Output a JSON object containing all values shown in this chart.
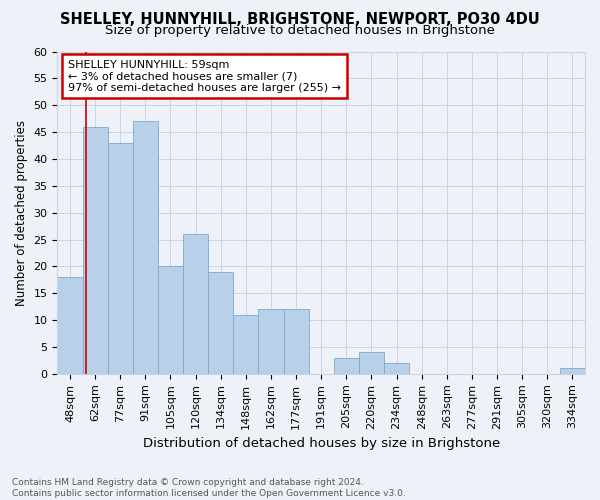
{
  "title": "SHELLEY, HUNNYHILL, BRIGHSTONE, NEWPORT, PO30 4DU",
  "subtitle": "Size of property relative to detached houses in Brighstone",
  "xlabel": "Distribution of detached houses by size in Brighstone",
  "ylabel": "Number of detached properties",
  "categories": [
    "48sqm",
    "62sqm",
    "77sqm",
    "91sqm",
    "105sqm",
    "120sqm",
    "134sqm",
    "148sqm",
    "162sqm",
    "177sqm",
    "191sqm",
    "205sqm",
    "220sqm",
    "234sqm",
    "248sqm",
    "263sqm",
    "277sqm",
    "291sqm",
    "305sqm",
    "320sqm",
    "334sqm"
  ],
  "values": [
    18,
    46,
    43,
    47,
    20,
    26,
    19,
    11,
    12,
    12,
    0,
    3,
    4,
    2,
    0,
    0,
    0,
    0,
    0,
    0,
    1
  ],
  "bar_color": "#b8d0e8",
  "bar_edgecolor": "#7aaacf",
  "background_color": "#eef2f8",
  "grid_color": "#c8d4e4",
  "annotation_text": "SHELLEY HUNNYHILL: 59sqm\n← 3% of detached houses are smaller (7)\n97% of semi-detached houses are larger (255) →",
  "annotation_box_color": "#ffffff",
  "annotation_box_edgecolor": "#cc0000",
  "redline_x": 0.636,
  "ylim": [
    0,
    60
  ],
  "yticks": [
    0,
    5,
    10,
    15,
    20,
    25,
    30,
    35,
    40,
    45,
    50,
    55,
    60
  ],
  "footer_text": "Contains HM Land Registry data © Crown copyright and database right 2024.\nContains public sector information licensed under the Open Government Licence v3.0.",
  "title_fontsize": 10.5,
  "subtitle_fontsize": 9.5,
  "xlabel_fontsize": 9.5,
  "ylabel_fontsize": 8.5,
  "tick_fontsize": 8,
  "annotation_fontsize": 8,
  "footer_fontsize": 6.5
}
